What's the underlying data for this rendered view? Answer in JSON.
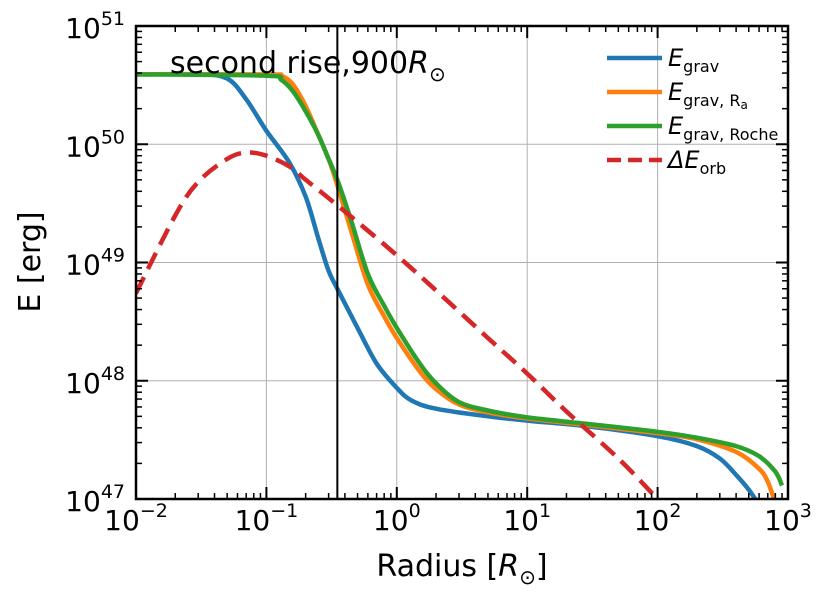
{
  "chart_data": {
    "type": "line",
    "title": "",
    "annotation": {
      "main": "second rise,900",
      "symbol": "R",
      "subscript": "⊙"
    },
    "xlabel": {
      "main": "Radius [",
      "symbol": "R",
      "subscript": "⊙",
      "close": "]"
    },
    "ylabel": "E [erg]",
    "xscale": "log",
    "yscale": "log",
    "xlim": [
      0.01,
      1000
    ],
    "ylim": [
      1e+47,
      1e+51
    ],
    "x_ticks": [
      {
        "base": "10",
        "exp": "−2",
        "value": 0.01
      },
      {
        "base": "10",
        "exp": "−1",
        "value": 0.1
      },
      {
        "base": "10",
        "exp": "0",
        "value": 1
      },
      {
        "base": "10",
        "exp": "1",
        "value": 10
      },
      {
        "base": "10",
        "exp": "2",
        "value": 100
      },
      {
        "base": "10",
        "exp": "3",
        "value": 1000
      }
    ],
    "y_ticks": [
      {
        "base": "10",
        "exp": "47",
        "value": 1e+47
      },
      {
        "base": "10",
        "exp": "48",
        "value": 1e+48
      },
      {
        "base": "10",
        "exp": "49",
        "value": 1e+49
      },
      {
        "base": "10",
        "exp": "50",
        "value": 1e+50
      },
      {
        "base": "10",
        "exp": "51",
        "value": 1e+51
      }
    ],
    "grid": true,
    "legend_position": "top-right",
    "vertical_line_x": 0.35,
    "series": [
      {
        "name": "E_grav",
        "label": {
          "main": "E",
          "sub": "grav"
        },
        "color": "#1f77b4",
        "dash": "solid",
        "x": [
          0.01,
          0.03,
          0.05,
          0.07,
          0.1,
          0.15,
          0.2,
          0.25,
          0.3,
          0.35,
          0.5,
          0.7,
          1.0,
          1.3,
          2,
          5,
          10,
          30,
          100,
          200,
          300,
          400,
          500,
          560
        ],
        "y": [
          3.9e+50,
          3.9e+50,
          3.6e+50,
          2.4e+50,
          1.3e+50,
          7e+49,
          3.6e+49,
          1.6e+49,
          8.5e+48,
          6e+48,
          2.8e+48,
          1.4e+48,
          8.7e+47,
          6.8e+47,
          5.8e+47,
          5e+47,
          4.6e+47,
          4.1e+47,
          3.4e+47,
          2.8e+47,
          2.2e+47,
          1.6e+47,
          1.2e+47,
          1e+47
        ]
      },
      {
        "name": "E_grav,Ra",
        "label": {
          "main": "E",
          "sub": "grav, R",
          "subsub": "a"
        },
        "color": "#ff7f0e",
        "dash": "solid",
        "x": [
          0.01,
          0.1,
          0.13,
          0.16,
          0.2,
          0.25,
          0.3,
          0.35,
          0.45,
          0.6,
          0.8,
          1.0,
          1.5,
          2,
          3,
          5,
          10,
          30,
          100,
          200,
          400,
          600,
          700,
          780
        ],
        "y": [
          3.9e+50,
          3.9e+50,
          3.8e+50,
          3.2e+50,
          2.1e+50,
          1.2e+50,
          7.5e+49,
          4.5e+49,
          1.8e+49,
          6.5e+48,
          3.5e+48,
          2.3e+48,
          1.2e+48,
          8.5e+47,
          6.3e+47,
          5.4e+47,
          4.8e+47,
          4.2e+47,
          3.6e+47,
          3.2e+47,
          2.5e+47,
          1.8e+47,
          1.4e+47,
          1e+47
        ]
      },
      {
        "name": "E_grav,Roche",
        "label": {
          "main": "E",
          "sub": "grav, Roche"
        },
        "color": "#2ca02c",
        "dash": "solid",
        "x": [
          0.01,
          0.1,
          0.13,
          0.16,
          0.2,
          0.25,
          0.3,
          0.35,
          0.45,
          0.6,
          0.8,
          1.0,
          1.5,
          2,
          3,
          5,
          10,
          30,
          100,
          200,
          400,
          600,
          800,
          900
        ],
        "y": [
          3.9e+50,
          3.8e+50,
          3.5e+50,
          2.8e+50,
          1.9e+50,
          1.2e+50,
          7.5e+49,
          5e+49,
          2.2e+49,
          8e+48,
          4.3e+48,
          2.8e+48,
          1.4e+48,
          9.5e+47,
          6.6e+47,
          5.6e+47,
          4.9e+47,
          4.3e+47,
          3.7e+47,
          3.3e+47,
          2.8e+47,
          2.3e+47,
          1.7e+47,
          1.3e+47
        ]
      },
      {
        "name": "ΔE_orb",
        "label": {
          "main": "ΔE",
          "sub": "orb"
        },
        "color": "#d62728",
        "dash": "dashed",
        "x": [
          0.01,
          0.02,
          0.03,
          0.05,
          0.07,
          0.1,
          0.15,
          0.2,
          0.3,
          0.5,
          1,
          2,
          5,
          10,
          20,
          50,
          100
        ],
        "y": [
          5.5e+48,
          2.5e+49,
          4.8e+49,
          7.5e+49,
          8.5e+49,
          8e+49,
          6.5e+49,
          5e+49,
          3.5e+49,
          2.2e+49,
          1.15e+49,
          5.8e+48,
          2.3e+48,
          1.15e+48,
          5.5e+47,
          2.2e+47,
          1e+47
        ]
      }
    ]
  }
}
